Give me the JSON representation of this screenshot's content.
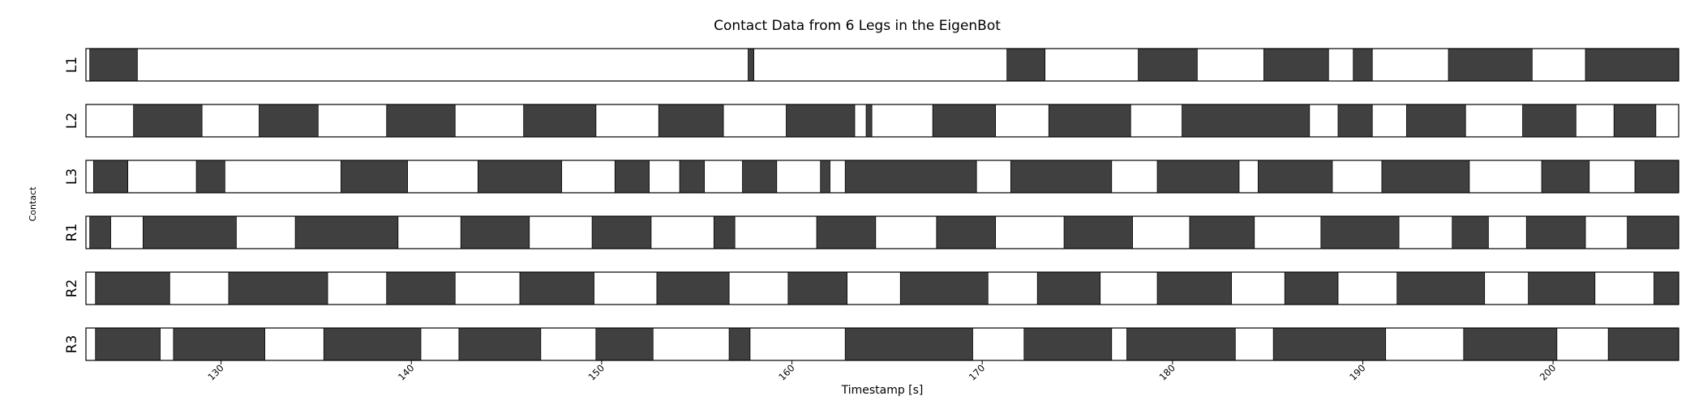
{
  "chart_data": {
    "type": "gantt",
    "title": "Contact Data from 6 Legs in the EigenBot",
    "xlabel": "Timestamp [s]",
    "ylabel": "Contact",
    "xlim": [
      122.9,
      206.6
    ],
    "xticks": [
      130,
      140,
      150,
      160,
      170,
      180,
      190,
      200
    ],
    "legs": [
      {
        "name": "L1",
        "contacts": [
          [
            123.1,
            125.6
          ],
          [
            157.7,
            158.0
          ],
          [
            171.3,
            173.3
          ],
          [
            178.2,
            181.3
          ],
          [
            184.8,
            188.2
          ],
          [
            189.5,
            190.5
          ],
          [
            194.5,
            198.9
          ],
          [
            201.7,
            206.9
          ]
        ]
      },
      {
        "name": "L2",
        "contacts": [
          [
            125.4,
            129.0
          ],
          [
            132.0,
            135.1
          ],
          [
            138.7,
            142.3
          ],
          [
            145.9,
            149.7
          ],
          [
            153.0,
            156.4
          ],
          [
            159.7,
            163.3
          ],
          [
            163.9,
            164.2
          ],
          [
            167.4,
            170.7
          ],
          [
            173.5,
            177.8
          ],
          [
            180.5,
            187.2
          ],
          [
            188.7,
            190.5
          ],
          [
            192.3,
            195.4
          ],
          [
            198.4,
            201.2
          ],
          [
            203.2,
            205.4
          ]
        ]
      },
      {
        "name": "L3",
        "contacts": [
          [
            123.3,
            125.1
          ],
          [
            128.7,
            130.2
          ],
          [
            136.3,
            139.8
          ],
          [
            143.5,
            147.9
          ],
          [
            150.7,
            152.5
          ],
          [
            154.1,
            155.4
          ],
          [
            157.4,
            159.2
          ],
          [
            161.5,
            162.0
          ],
          [
            162.8,
            169.7
          ],
          [
            171.5,
            176.8
          ],
          [
            179.2,
            183.5
          ],
          [
            184.5,
            188.4
          ],
          [
            191.0,
            195.6
          ],
          [
            199.4,
            201.9
          ],
          [
            204.3,
            206.6
          ]
        ]
      },
      {
        "name": "R1",
        "contacts": [
          [
            123.1,
            124.2
          ],
          [
            125.9,
            130.8
          ],
          [
            133.9,
            139.3
          ],
          [
            142.6,
            146.2
          ],
          [
            149.5,
            152.6
          ],
          [
            155.9,
            157.0
          ],
          [
            161.3,
            164.4
          ],
          [
            167.6,
            170.7
          ],
          [
            174.3,
            177.9
          ],
          [
            180.9,
            184.3
          ],
          [
            187.8,
            191.9
          ],
          [
            194.7,
            196.6
          ],
          [
            198.6,
            201.7
          ],
          [
            203.9,
            206.6
          ]
        ]
      },
      {
        "name": "R2",
        "contacts": [
          [
            123.4,
            127.3
          ],
          [
            130.4,
            135.6
          ],
          [
            138.7,
            142.3
          ],
          [
            145.7,
            149.6
          ],
          [
            152.9,
            156.7
          ],
          [
            159.8,
            162.9
          ],
          [
            165.7,
            170.3
          ],
          [
            172.9,
            176.2
          ],
          [
            179.2,
            183.1
          ],
          [
            185.9,
            188.7
          ],
          [
            191.8,
            196.4
          ],
          [
            198.7,
            202.2
          ],
          [
            205.3,
            206.6
          ]
        ]
      },
      {
        "name": "R3",
        "contacts": [
          [
            123.4,
            126.8
          ],
          [
            127.5,
            132.3
          ],
          [
            135.4,
            140.5
          ],
          [
            142.5,
            146.8
          ],
          [
            149.7,
            152.7
          ],
          [
            156.7,
            157.8
          ],
          [
            162.8,
            169.5
          ],
          [
            172.2,
            176.8
          ],
          [
            177.6,
            183.3
          ],
          [
            185.3,
            191.2
          ],
          [
            195.3,
            200.2
          ],
          [
            202.9,
            206.6
          ]
        ]
      }
    ]
  }
}
